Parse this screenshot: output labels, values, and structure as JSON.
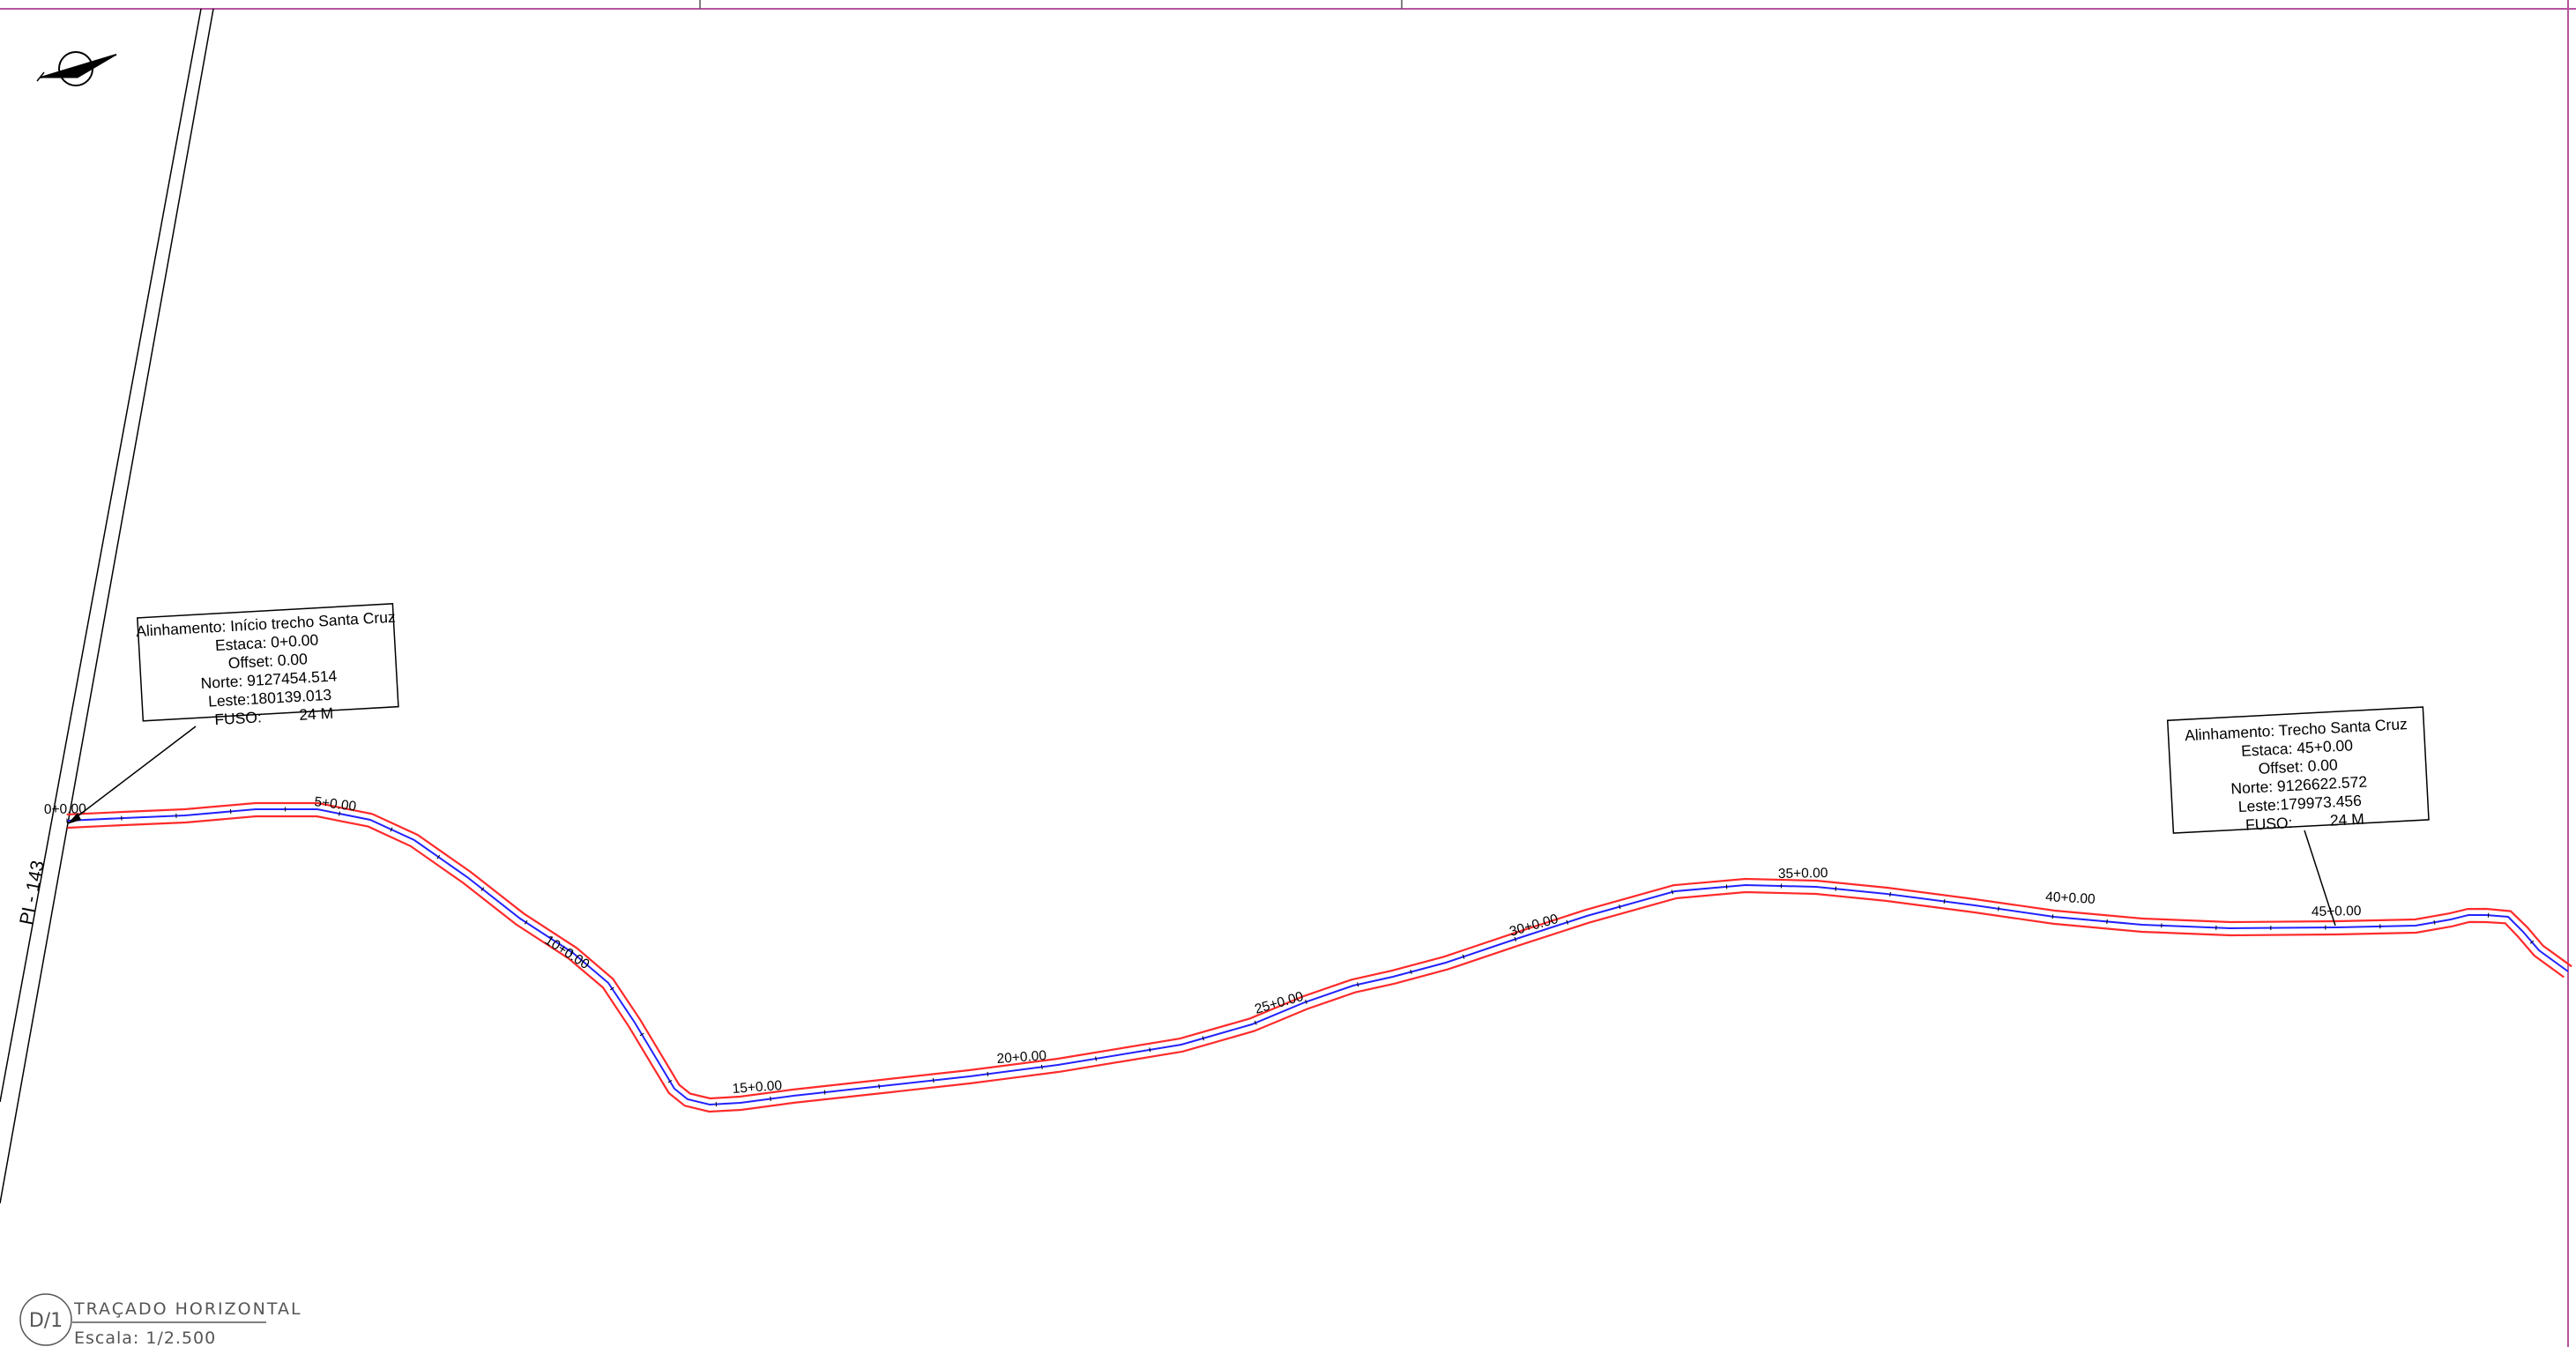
{
  "colors": {
    "frame": "#b6549e",
    "edge_line": "#ff2a2a",
    "centerline": "#2222ff",
    "ink": "#000000",
    "title_ink": "#555555"
  },
  "icons": {
    "north_arrow": "north-arrow-icon"
  },
  "road": {
    "label": "PI - 143"
  },
  "stations": [
    {
      "label": "0+0.00"
    },
    {
      "label": "5+0.00"
    },
    {
      "label": "10+0.00"
    },
    {
      "label": "15+0.00"
    },
    {
      "label": "20+0.00"
    },
    {
      "label": "25+0.00"
    },
    {
      "label": "30+0.00"
    },
    {
      "label": "35+0.00"
    },
    {
      "label": "40+0.00"
    },
    {
      "label": "45+0.00"
    }
  ],
  "callouts": [
    {
      "lines": [
        "Alinhamento: Início trecho Santa Cruz",
        "Estaca: 0+0.00",
        "Offset: 0.00",
        "Norte: 9127454.514",
        "Leste:180139.013",
        "FUSO:",
        "24 M"
      ]
    },
    {
      "lines": [
        "Alinhamento: Trecho Santa Cruz",
        "Estaca: 45+0.00",
        "Offset: 0.00",
        "Norte: 9126622.572",
        "Leste:179973.456",
        "FUSO:",
        "24 M"
      ]
    }
  ],
  "title_block": {
    "id": "D/1",
    "title": "TRAÇADO  HORIZONTAL",
    "scale": "Escala:  1/2.500"
  }
}
